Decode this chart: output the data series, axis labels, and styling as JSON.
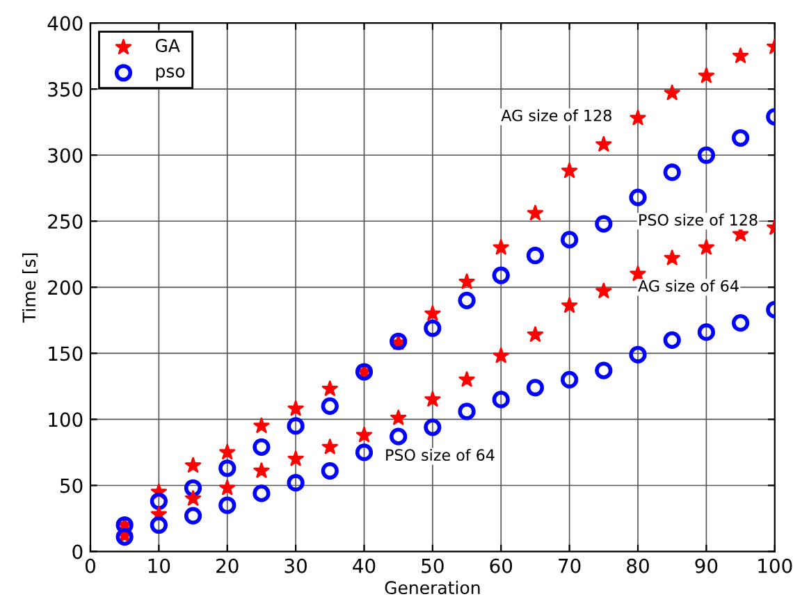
{
  "chart_data": {
    "type": "scatter",
    "xlabel": "Generation",
    "ylabel": "Time [s]",
    "x": [
      5,
      10,
      15,
      20,
      25,
      30,
      35,
      40,
      45,
      50,
      55,
      60,
      65,
      70,
      75,
      80,
      85,
      90,
      95,
      100
    ],
    "series": [
      {
        "name": "GA",
        "color": "#ff0000",
        "marker": "star",
        "values": [
          20,
          45,
          65,
          75,
          95,
          108,
          123,
          136,
          158,
          180,
          204,
          230,
          256,
          288,
          308,
          328,
          347,
          360,
          375,
          382
        ]
      },
      {
        "name": "pso",
        "color": "#0000ff",
        "marker": "circle",
        "values": [
          20,
          38,
          48,
          63,
          79,
          95,
          110,
          136,
          159,
          169,
          190,
          209,
          224,
          236,
          248,
          268,
          287,
          300,
          313,
          329
        ]
      },
      {
        "color": "#ff0000",
        "marker": "star",
        "values": [
          12,
          28,
          40,
          48,
          61,
          70,
          79,
          88,
          101,
          115,
          130,
          148,
          164,
          186,
          197,
          210,
          222,
          230,
          240,
          245
        ]
      },
      {
        "color": "#0000ff",
        "marker": "circle",
        "values": [
          11,
          20,
          27,
          35,
          44,
          52,
          61,
          75,
          87,
          94,
          106,
          115,
          124,
          130,
          137,
          149,
          160,
          166,
          173,
          183
        ]
      }
    ],
    "annotations": [
      "AG size of 128",
      "PSO size of 128",
      "AG size of 64",
      "PSO size of 64"
    ],
    "xlim": [
      0,
      100
    ],
    "ylim": [
      0,
      400
    ],
    "xticks": [
      0,
      10,
      20,
      30,
      40,
      50,
      60,
      70,
      80,
      90,
      100
    ],
    "yticks": [
      0,
      50,
      100,
      150,
      200,
      250,
      300,
      350,
      400
    ],
    "grid": true,
    "legend": "top left"
  }
}
